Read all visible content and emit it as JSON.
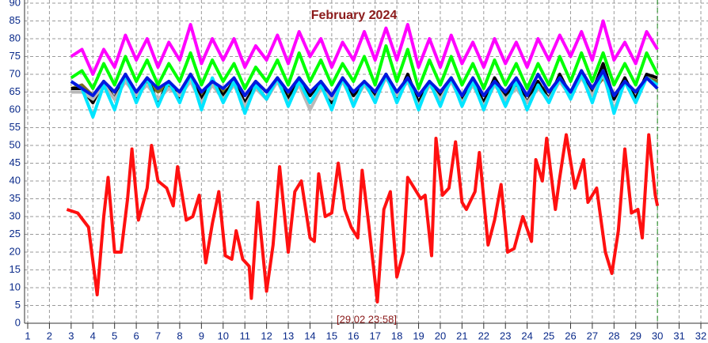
{
  "chart_data": {
    "type": "line",
    "title": "February 2024",
    "annotation": "[29.02 23:58]",
    "marker_x": 30,
    "xlim": [
      1,
      32
    ],
    "ylim": [
      0,
      90
    ],
    "xticks": [
      1,
      2,
      3,
      4,
      5,
      6,
      7,
      8,
      9,
      10,
      11,
      12,
      13,
      14,
      15,
      16,
      17,
      18,
      19,
      20,
      21,
      22,
      23,
      24,
      25,
      26,
      27,
      28,
      29,
      30,
      31,
      32
    ],
    "yticks": [
      0,
      5,
      10,
      15,
      20,
      25,
      30,
      35,
      40,
      45,
      50,
      55,
      60,
      65,
      70,
      75,
      80,
      85,
      90
    ],
    "grid": true,
    "x": [
      3,
      3.5,
      4,
      4.5,
      5,
      5.5,
      6,
      6.5,
      7,
      7.5,
      8,
      8.5,
      9,
      9.5,
      10,
      10.5,
      11,
      11.5,
      12,
      12.5,
      13,
      13.5,
      14,
      14.5,
      15,
      15.5,
      16,
      16.5,
      17,
      17.5,
      18,
      18.5,
      19,
      19.5,
      20,
      20.5,
      21,
      21.5,
      22,
      22.5,
      23,
      23.5,
      24,
      24.5,
      25,
      25.5,
      26,
      26.5,
      27,
      27.5,
      28,
      28.5,
      29,
      29.5,
      30
    ],
    "series": [
      {
        "color": "#ff00ff",
        "values": [
          75,
          77,
          70,
          77,
          72,
          81,
          74,
          80,
          72,
          79,
          74,
          84,
          73,
          80,
          74,
          80,
          72,
          78,
          74,
          81,
          73,
          82,
          75,
          80,
          72,
          79,
          74,
          82,
          74,
          83,
          74,
          84,
          72,
          80,
          72,
          81,
          73,
          79,
          72,
          80,
          73,
          79,
          72,
          80,
          74,
          81,
          75,
          82,
          74,
          85,
          74,
          79,
          73,
          82,
          77
        ]
      },
      {
        "color": "#7a7020",
        "values": [
          66,
          67,
          64,
          68,
          65,
          69,
          64,
          68,
          65,
          67,
          64,
          70,
          64,
          68,
          65,
          67,
          64,
          68,
          65,
          68,
          64,
          69,
          65,
          67,
          64,
          68,
          64,
          68,
          65,
          70,
          64,
          69,
          64,
          67,
          65,
          68,
          64,
          67,
          64,
          68,
          65,
          67,
          64,
          67,
          65,
          68,
          64,
          70,
          65,
          69,
          64,
          68,
          65,
          69,
          68
        ]
      },
      {
        "color": "#000000",
        "values": [
          66,
          66,
          62,
          68,
          63,
          70,
          63,
          69,
          62,
          68,
          63,
          70,
          63,
          68,
          64,
          68,
          62,
          67,
          63,
          69,
          63,
          69,
          64,
          68,
          62,
          69,
          64,
          68,
          64,
          70,
          63,
          70,
          62,
          68,
          64,
          69,
          63,
          68,
          62,
          69,
          64,
          68,
          62,
          68,
          63,
          70,
          64,
          71,
          65,
          73,
          63,
          69,
          63,
          70,
          69
        ]
      },
      {
        "color": "#b8b8b8",
        "values": [
          65,
          65,
          63,
          67,
          63,
          68,
          64,
          67,
          63,
          66,
          64,
          68,
          62,
          67,
          63,
          67,
          61,
          66,
          63,
          68,
          62,
          67,
          60,
          66,
          63,
          68,
          62,
          67,
          63,
          69,
          64,
          68,
          61,
          67,
          63,
          68,
          62,
          67,
          61,
          67,
          63,
          66,
          62,
          66,
          63,
          68,
          64,
          69,
          64,
          70,
          60,
          68,
          62,
          69,
          66
        ]
      },
      {
        "color": "#00e5ff",
        "values": [
          68,
          66,
          58,
          67,
          60,
          70,
          62,
          69,
          61,
          68,
          62,
          70,
          60,
          69,
          62,
          68,
          59,
          67,
          63,
          69,
          61,
          68,
          62,
          67,
          60,
          69,
          61,
          68,
          62,
          70,
          62,
          69,
          60,
          68,
          61,
          69,
          61,
          68,
          60,
          68,
          61,
          68,
          60,
          67,
          62,
          69,
          63,
          70,
          62,
          71,
          59,
          68,
          62,
          69,
          67
        ]
      },
      {
        "color": "#00ff00",
        "values": [
          69,
          71,
          66,
          73,
          67,
          75,
          68,
          74,
          67,
          73,
          68,
          76,
          67,
          74,
          68,
          73,
          66,
          72,
          68,
          74,
          67,
          76,
          68,
          74,
          67,
          73,
          68,
          75,
          67,
          78,
          68,
          77,
          66,
          74,
          67,
          75,
          67,
          73,
          66,
          74,
          67,
          73,
          66,
          73,
          67,
          75,
          68,
          76,
          68,
          76,
          67,
          73,
          67,
          76,
          70
        ]
      },
      {
        "color": "#0018e0",
        "values": [
          68,
          66,
          64,
          68,
          65,
          70,
          65,
          69,
          66,
          68,
          65,
          70,
          65,
          68,
          66,
          69,
          64,
          68,
          65,
          69,
          65,
          69,
          65,
          68,
          64,
          69,
          65,
          68,
          65,
          70,
          65,
          69,
          64,
          68,
          65,
          69,
          64,
          69,
          64,
          68,
          65,
          69,
          64,
          70,
          65,
          69,
          65,
          71,
          66,
          71,
          64,
          68,
          65,
          69,
          66
        ]
      },
      {
        "color": "#ff1010",
        "x": [
          2.8,
          3.3,
          3.8,
          4.2,
          4.5,
          4.7,
          5.0,
          5.3,
          5.6,
          5.8,
          6.1,
          6.5,
          6.7,
          7.0,
          7.4,
          7.7,
          7.9,
          8.3,
          8.6,
          8.9,
          9.2,
          9.5,
          9.8,
          10.1,
          10.4,
          10.6,
          10.9,
          11.2,
          11.3,
          11.6,
          12.0,
          12.3,
          12.6,
          13.0,
          13.3,
          13.6,
          14.0,
          14.2,
          14.4,
          14.7,
          15.0,
          15.3,
          15.6,
          15.9,
          16.2,
          16.4,
          16.7,
          17.1,
          17.4,
          17.7,
          18.0,
          18.3,
          18.5,
          18.8,
          19.1,
          19.3,
          19.6,
          19.8,
          20.1,
          20.4,
          20.7,
          21.0,
          21.2,
          21.6,
          21.8,
          22.2,
          22.5,
          22.8,
          23.1,
          23.4,
          23.8,
          24.2,
          24.4,
          24.7,
          24.9,
          25.3,
          25.5,
          25.8,
          26.2,
          26.6,
          26.8,
          27.2,
          27.6,
          27.9,
          28.2,
          28.5,
          28.8,
          29.1,
          29.3,
          29.6,
          29.9,
          30.0
        ],
        "values": [
          32,
          31,
          27,
          8,
          30,
          41,
          20,
          20,
          35,
          49,
          29,
          38,
          50,
          40,
          38,
          33,
          44,
          29,
          30,
          36,
          17,
          28,
          37,
          19,
          18,
          26,
          18,
          16,
          7,
          34,
          9,
          22,
          44,
          20,
          37,
          40,
          24,
          23,
          42,
          30,
          31,
          45,
          32,
          27,
          24,
          43,
          28,
          6,
          32,
          37,
          13,
          20,
          41,
          38,
          35,
          36,
          19,
          52,
          36,
          38,
          51,
          34,
          32,
          37,
          48,
          22,
          29,
          39,
          20,
          21,
          30,
          23,
          46,
          40,
          52,
          32,
          41,
          53,
          38,
          46,
          34,
          38,
          20,
          14,
          26,
          49,
          31,
          32,
          24,
          53,
          36,
          33
        ]
      }
    ]
  }
}
